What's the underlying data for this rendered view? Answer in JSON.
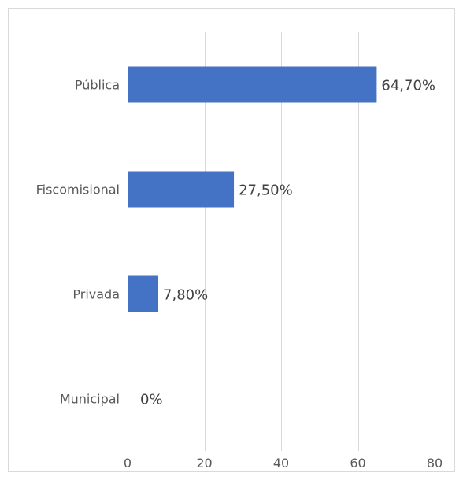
{
  "chart_data": {
    "type": "bar",
    "orientation": "horizontal",
    "categories": [
      "Pública",
      "Fiscomisional",
      "Privada",
      "Municipal"
    ],
    "values": [
      64.7,
      27.5,
      7.8,
      0
    ],
    "data_labels": [
      "64,70%",
      "27,50%",
      "7,80%",
      "0%"
    ],
    "xlim": [
      0,
      80
    ],
    "x_ticks": [
      0,
      20,
      40,
      60,
      80
    ],
    "x_tick_labels": [
      "0",
      "20",
      "40",
      "60",
      "80"
    ],
    "grid": "vertical",
    "legend": "none",
    "bar_color": "#4472c4"
  }
}
